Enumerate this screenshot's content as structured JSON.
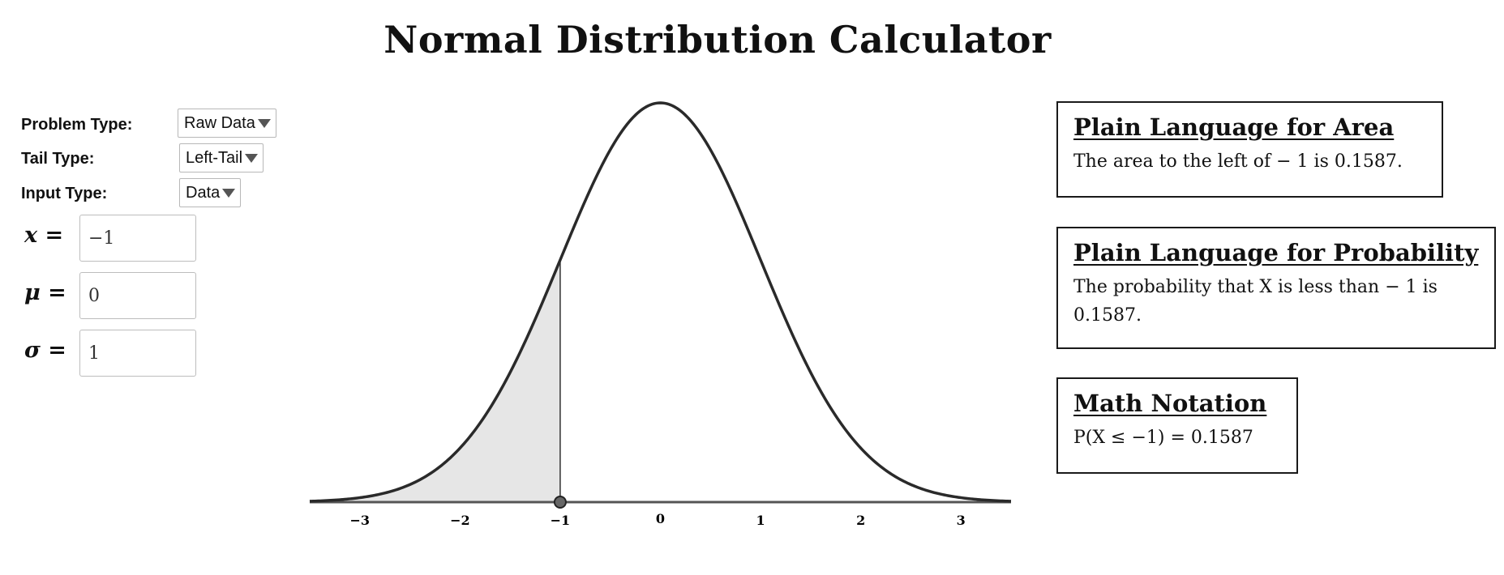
{
  "title": "Normal Distribution Calculator",
  "controls": {
    "problem_type": {
      "label": "Problem Type:",
      "value": "Raw Data"
    },
    "tail_type": {
      "label": "Tail Type:",
      "value": "Left-Tail"
    },
    "input_type": {
      "label": "Input Type:",
      "value": "Data"
    }
  },
  "inputs": {
    "x": {
      "label": "x =",
      "value": "−1"
    },
    "mu": {
      "label": "μ =",
      "value": "0"
    },
    "sigma": {
      "label": "σ =",
      "value": "1"
    }
  },
  "chart_data": {
    "type": "area",
    "distribution": "normal",
    "mean": 0,
    "sd": 1,
    "x_value": -1,
    "shaded_region": "left",
    "xlim": [
      -3.5,
      3.5
    ],
    "ticks": [
      -3,
      -2,
      -1,
      0,
      1,
      2,
      3
    ],
    "tick_labels": [
      "−3",
      "−2",
      "−1",
      "0",
      "1",
      "2",
      "3"
    ],
    "title": "",
    "xlabel": "",
    "ylabel": "",
    "curve_color": "#2a2a2a",
    "shade_color": "#e6e6e6",
    "grid": false
  },
  "panels": {
    "area": {
      "heading": "Plain Language for Area",
      "text": "The area to the left of  − 1 is 0.1587."
    },
    "probability": {
      "heading": "Plain Language for Probability",
      "text": "The probability that X is less than  − 1 is 0.1587."
    },
    "math": {
      "heading": "Math Notation",
      "text": "P(X ≤  −1) = 0.1587"
    }
  }
}
